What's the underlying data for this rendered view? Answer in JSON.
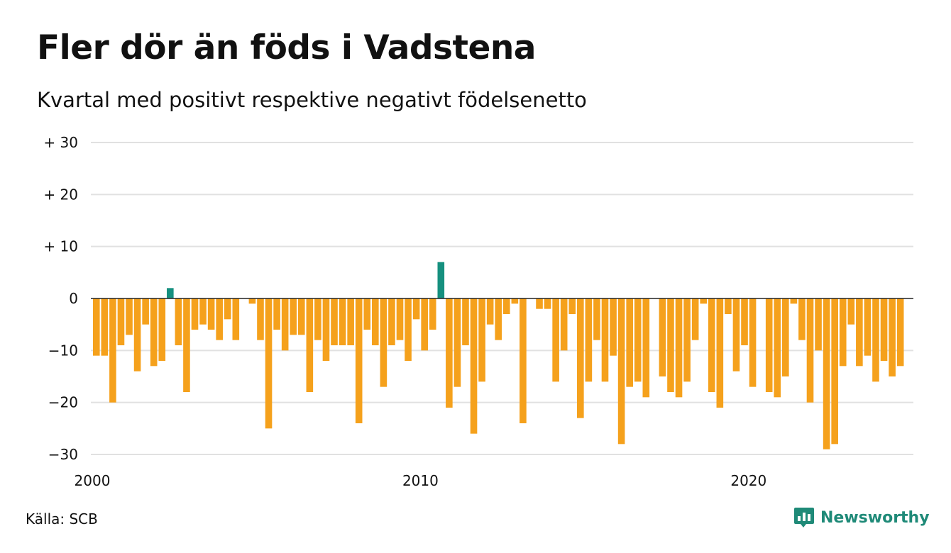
{
  "title": "Fler dör än föds i Vadstena",
  "subtitle": "Kvartal med positivt respektive negativt födelsenetto",
  "source": "Källa: SCB",
  "brand": {
    "name": "Newsworthy",
    "icon": "newsworthy-logo-icon"
  },
  "colors": {
    "positive": "#16907f",
    "negative": "#f5a11c",
    "grid": "#e1e1e1",
    "zero_line": "#222222",
    "brand": "#1f8a78"
  },
  "chart_data": {
    "type": "bar",
    "x_start": "2000 Q1",
    "frequency": "quarterly",
    "ylim": [
      -30,
      30
    ],
    "yticks": [
      30,
      20,
      10,
      0,
      -10,
      -20,
      -30
    ],
    "ytick_labels": [
      "+ 30",
      "+ 20",
      "+ 10",
      "0",
      "−10",
      "−20",
      "−30"
    ],
    "xtick_labels": [
      {
        "label": "2000",
        "year": 2000
      },
      {
        "label": "2010",
        "year": 2010
      },
      {
        "label": "2020",
        "year": 2020
      }
    ],
    "grid": true,
    "values": [
      -11,
      -11,
      -20,
      -9,
      -7,
      -14,
      -5,
      -13,
      -12,
      2,
      -9,
      -18,
      -6,
      -5,
      -6,
      -8,
      -4,
      -8,
      0,
      -1,
      -8,
      -25,
      -6,
      -10,
      -7,
      -7,
      -18,
      -8,
      -12,
      -9,
      -9,
      -9,
      -24,
      -6,
      -9,
      -17,
      -9,
      -8,
      -12,
      -4,
      -10,
      -6,
      7,
      -21,
      -17,
      -9,
      -26,
      -16,
      -5,
      -8,
      -3,
      -1,
      -24,
      0,
      -2,
      -2,
      -16,
      -10,
      -3,
      -23,
      -16,
      -8,
      -16,
      -11,
      -28,
      -17,
      -16,
      -19,
      0,
      -15,
      -18,
      -19,
      -16,
      -8,
      -1,
      -18,
      -21,
      -3,
      -14,
      -9,
      -17,
      0,
      -18,
      -19,
      -15,
      -1,
      -8,
      -20,
      -10,
      -29,
      -28,
      -13,
      -5,
      -13,
      -11,
      -16,
      -12,
      -15,
      -13
    ]
  }
}
